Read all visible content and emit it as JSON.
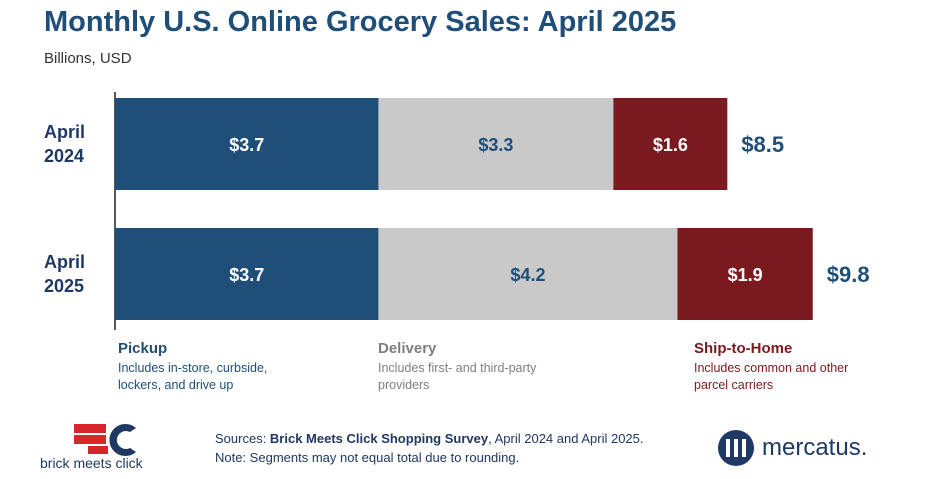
{
  "title": "Monthly U.S. Online Grocery Sales: April 2025",
  "subtitle": "Billions, USD",
  "colors": {
    "pickup": "#1f4e79",
    "delivery": "#c9c9c9",
    "ship": "#7b1a1e",
    "title": "#1f4e79",
    "pickup_text": "#ffffff",
    "delivery_text": "#1f4e79",
    "ship_text": "#ffffff"
  },
  "chart_data": {
    "type": "bar",
    "orientation": "horizontal",
    "stacked": true,
    "categories": [
      [
        "April",
        "2024"
      ],
      [
        "April",
        "2025"
      ]
    ],
    "series": [
      {
        "name": "Pickup",
        "values": [
          3.7,
          3.7
        ],
        "labels": [
          "$3.7",
          "$3.7"
        ]
      },
      {
        "name": "Delivery",
        "values": [
          3.3,
          4.2
        ],
        "labels": [
          "$3.3",
          "$4.2"
        ]
      },
      {
        "name": "Ship-to-Home",
        "values": [
          1.6,
          1.9
        ],
        "labels": [
          "$1.6",
          "$1.9"
        ]
      }
    ],
    "totals": [
      8.5,
      9.8
    ],
    "total_labels": [
      "$8.5",
      "$9.8"
    ],
    "xlim": [
      0,
      9.8
    ],
    "grid": false
  },
  "legend": [
    {
      "name": "Pickup",
      "desc": "Includes in-store, curbside, lockers, and drive up"
    },
    {
      "name": "Delivery",
      "desc": "Includes first- and third-party providers"
    },
    {
      "name": "Ship-to-Home",
      "desc": "Includes common and other parcel carriers"
    }
  ],
  "footer": {
    "sources_prefix": "Sources: ",
    "sources_bold": "Brick Meets Click Shopping Survey",
    "sources_suffix": ", April 2024 and April 2025.",
    "note": "Note: Segments may not equal total due to rounding."
  },
  "logos": {
    "left_text": "brick meets click",
    "left_icon": "brick-meets-click-logo-icon",
    "right_text": "mercatus.",
    "right_icon": "mercatus-logo-icon"
  }
}
